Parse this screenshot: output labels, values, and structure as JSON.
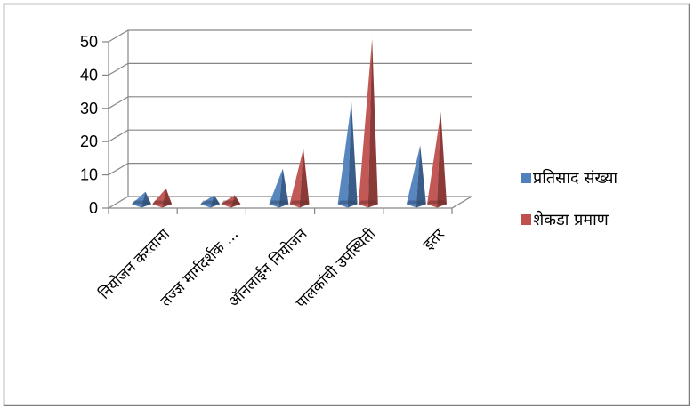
{
  "chart_data": {
    "type": "bar",
    "style": "3d-pyramid",
    "categories": [
      "नियोजन करताना",
      "तज्ज्ञ मार्गदर्शक ...",
      "ऑनलाईन नियोजन",
      "पालकांची उपस्थिती",
      "इतर"
    ],
    "series": [
      {
        "name": "प्रतिसाद संख्या",
        "values": [
          3,
          2,
          10,
          30,
          17
        ],
        "color": "#4F81BD"
      },
      {
        "name": "शेकडा प्रमाण",
        "values": [
          4,
          2,
          16,
          49,
          27
        ],
        "color": "#C0504D"
      }
    ],
    "yticks": [
      "0",
      "10",
      "20",
      "30",
      "40",
      "50"
    ],
    "ylim": [
      0,
      50
    ],
    "grid": true,
    "legend": "right"
  }
}
